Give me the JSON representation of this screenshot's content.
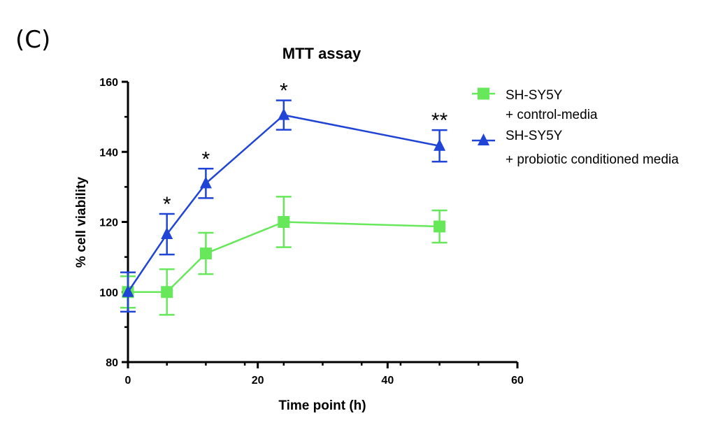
{
  "panel_label": "(C)",
  "chart_data": {
    "type": "line",
    "title": "MTT assay",
    "xlabel": "Time point (h)",
    "ylabel": "% cell viability",
    "xlim": [
      0,
      60
    ],
    "ylim": [
      80,
      160
    ],
    "x_ticks": [
      "0",
      "20",
      "40",
      "60"
    ],
    "y_ticks": [
      "80",
      "100",
      "120",
      "140",
      "160"
    ],
    "grid": false,
    "legend_position": "top-right",
    "series": [
      {
        "name_line1": "SH-SY5Y",
        "name_line2": "+ control-media",
        "marker": "square",
        "color": "#66e85a",
        "x": [
          0,
          6,
          12,
          24,
          48
        ],
        "y": [
          100,
          100,
          111,
          120,
          118.7
        ],
        "err": [
          4.5,
          6.5,
          5.9,
          7.2,
          4.6
        ]
      },
      {
        "name_line1": "SH-SY5Y",
        "name_line2": "+ probiotic conditioned media",
        "marker": "triangle",
        "color": "#1f44d6",
        "x": [
          0,
          6,
          12,
          24,
          48
        ],
        "y": [
          100,
          116.5,
          131,
          150.5,
          141.7
        ],
        "err": [
          5.6,
          5.8,
          4.2,
          4.2,
          4.5
        ]
      }
    ],
    "annotations": [
      {
        "x": 6,
        "text": "*"
      },
      {
        "x": 12,
        "text": "*"
      },
      {
        "x": 24,
        "text": "*"
      },
      {
        "x": 48,
        "text": "**"
      }
    ]
  }
}
